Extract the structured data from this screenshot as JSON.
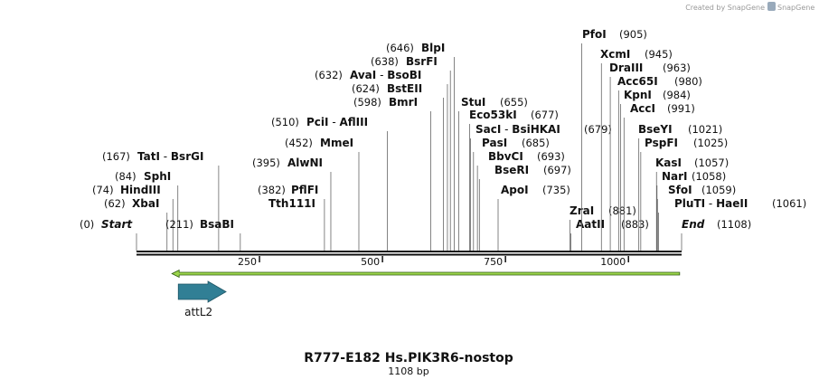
{
  "watermark": "Created by SnapGene",
  "title": "R777-E182 Hs.PIK3R6-nostop",
  "subtitle": "1108 bp",
  "ticks": [
    250,
    500,
    750,
    1000
  ],
  "enzymes": [
    {
      "names": [
        "Start"
      ],
      "position": {
        "value": 0,
        "label": "(0)"
      }
    },
    {
      "names": [
        "XbaI"
      ],
      "position": {
        "value": 62,
        "label": "(62)"
      }
    },
    {
      "names": [
        "HindIII"
      ],
      "position": {
        "value": 74,
        "label": "(74)"
      }
    },
    {
      "names": [
        "SphI"
      ],
      "position": {
        "value": 84,
        "label": "(84)"
      }
    },
    {
      "names": [
        "TatI",
        "BsrGI"
      ],
      "position": {
        "value": 167,
        "label": "(167)"
      }
    },
    {
      "names": [
        "BsaBI"
      ],
      "position": {
        "value": 211,
        "label": "(211)"
      }
    },
    {
      "names": [
        "PflFI"
      ],
      "position": {
        "value": 382,
        "label": "(382)"
      },
      "also": "Tth111I"
    },
    {
      "names": [
        "AlwNI"
      ],
      "position": {
        "value": 395,
        "label": "(395)"
      }
    },
    {
      "names": [
        "MmeI"
      ],
      "position": {
        "value": 452,
        "label": "(452)"
      }
    },
    {
      "names": [
        "PciI",
        "AflIII"
      ],
      "position": {
        "value": 510,
        "label": "(510)"
      }
    },
    {
      "names": [
        "BmrI"
      ],
      "position": {
        "value": 598,
        "label": "(598)"
      }
    },
    {
      "names": [
        "BstEII"
      ],
      "position": {
        "value": 624,
        "label": "(624)"
      }
    },
    {
      "names": [
        "AvaI",
        "BsoBI"
      ],
      "position": {
        "value": 632,
        "label": "(632)"
      }
    },
    {
      "names": [
        "BsrFI"
      ],
      "position": {
        "value": 638,
        "label": "(638)"
      }
    },
    {
      "names": [
        "BlpI"
      ],
      "position": {
        "value": 646,
        "label": "(646)"
      }
    },
    {
      "names": [
        "StuI"
      ],
      "position": {
        "value": 655,
        "label": "(655)"
      }
    },
    {
      "names": [
        "Eco53kI"
      ],
      "position": {
        "value": 677,
        "label": "(677)"
      }
    },
    {
      "names": [
        "SacI",
        "BsiHKAI"
      ],
      "position": {
        "value": 679,
        "label": "(679)"
      }
    },
    {
      "names": [
        "PasI"
      ],
      "position": {
        "value": 685,
        "label": "(685)"
      }
    },
    {
      "names": [
        "BbvCI"
      ],
      "position": {
        "value": 693,
        "label": "(693)"
      }
    },
    {
      "names": [
        "BseRI"
      ],
      "position": {
        "value": 697,
        "label": "(697)"
      }
    },
    {
      "names": [
        "ApoI"
      ],
      "position": {
        "value": 735,
        "label": "(735)"
      }
    },
    {
      "names": [
        "ZraI"
      ],
      "position": {
        "value": 881,
        "label": "(881)"
      }
    },
    {
      "names": [
        "AatII"
      ],
      "position": {
        "value": 883,
        "label": "(883)"
      }
    },
    {
      "names": [
        "PfoI"
      ],
      "position": {
        "value": 905,
        "label": "(905)"
      }
    },
    {
      "names": [
        "XcmI"
      ],
      "position": {
        "value": 945,
        "label": "(945)"
      }
    },
    {
      "names": [
        "DraIII"
      ],
      "position": {
        "value": 963,
        "label": "(963)"
      }
    },
    {
      "names": [
        "Acc65I"
      ],
      "position": {
        "value": 980,
        "label": "(980)"
      }
    },
    {
      "names": [
        "KpnI"
      ],
      "position": {
        "value": 984,
        "label": "(984)"
      }
    },
    {
      "names": [
        "AccI"
      ],
      "position": {
        "value": 991,
        "label": "(991)"
      }
    },
    {
      "names": [
        "BseYI"
      ],
      "position": {
        "value": 1021,
        "label": "(1021)"
      }
    },
    {
      "names": [
        "PspFI"
      ],
      "position": {
        "value": 1025,
        "label": "(1025)"
      }
    },
    {
      "names": [
        "KasI"
      ],
      "position": {
        "value": 1057,
        "label": "(1057)"
      }
    },
    {
      "names": [
        "NarI"
      ],
      "position": {
        "value": 1058,
        "label": "(1058)"
      }
    },
    {
      "names": [
        "SfoI"
      ],
      "position": {
        "value": 1059,
        "label": "(1059)"
      }
    },
    {
      "names": [
        "PluTI",
        "HaeII"
      ],
      "position": {
        "value": 1061,
        "label": "(1061)"
      }
    },
    {
      "names": [
        "End"
      ],
      "position": {
        "value": 1108,
        "label": "(1108)"
      }
    }
  ],
  "features": [
    {
      "name": "attL2",
      "start": 85,
      "end": 182,
      "direction": "right",
      "color": "#317f95"
    },
    {
      "start": 72,
      "end": 1104,
      "direction": "left",
      "color": "#9bd44a"
    }
  ]
}
